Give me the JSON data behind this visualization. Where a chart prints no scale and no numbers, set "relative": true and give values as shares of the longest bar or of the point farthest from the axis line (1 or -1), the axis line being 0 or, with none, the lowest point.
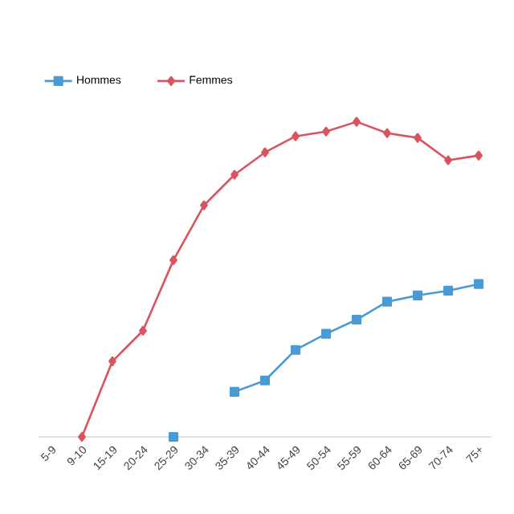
{
  "chart_data": {
    "type": "line",
    "relative": true,
    "legend": "top left",
    "categories": [
      "5-9",
      "9-10",
      "15-19",
      "20-24",
      "25-29",
      "30-34",
      "35-39",
      "40-44",
      "45-49",
      "50-54",
      "55-59",
      "60-64",
      "65-69",
      "70-74",
      "75+"
    ],
    "series": [
      {
        "name": "Hommes",
        "color": "#4a9ad4",
        "marker": "square",
        "values": [
          null,
          null,
          null,
          null,
          0,
          null,
          0.143,
          0.179,
          0.276,
          0.327,
          0.372,
          0.429,
          0.449,
          0.464,
          0.485
        ]
      },
      {
        "name": "Femmes",
        "color": "#d9545e",
        "marker": "diamond",
        "values": [
          null,
          0,
          0.24,
          0.337,
          0.561,
          0.735,
          0.832,
          0.903,
          0.954,
          0.969,
          1,
          0.964,
          0.949,
          0.878,
          0.893
        ]
      }
    ]
  }
}
